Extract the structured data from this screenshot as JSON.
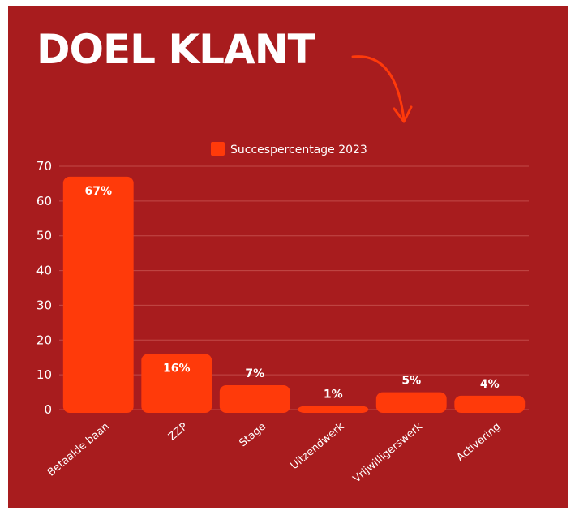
{
  "title": "DOEL KLANT",
  "colors": {
    "background": "#a81c1e",
    "bar": "#ff3a0a",
    "arrow": "#ff3a0a",
    "text": "#ffffff",
    "grid": "#c24a48"
  },
  "chart_data": {
    "type": "bar",
    "categories": [
      "Betaalde baan",
      "ZZP",
      "Stage",
      "Uitzendwerk",
      "Vrijwilligerswerk",
      "Activering"
    ],
    "series": [
      {
        "name": "Succespercentage 2023",
        "values": [
          67,
          16,
          7,
          1,
          5,
          4
        ],
        "labels": [
          "67%",
          "16%",
          "7%",
          "1%",
          "5%",
          "4%"
        ]
      }
    ],
    "ylim": [
      0,
      70
    ],
    "yticks": [
      0,
      10,
      20,
      30,
      40,
      50,
      60,
      70
    ],
    "grid": true,
    "legend": "top-center"
  }
}
